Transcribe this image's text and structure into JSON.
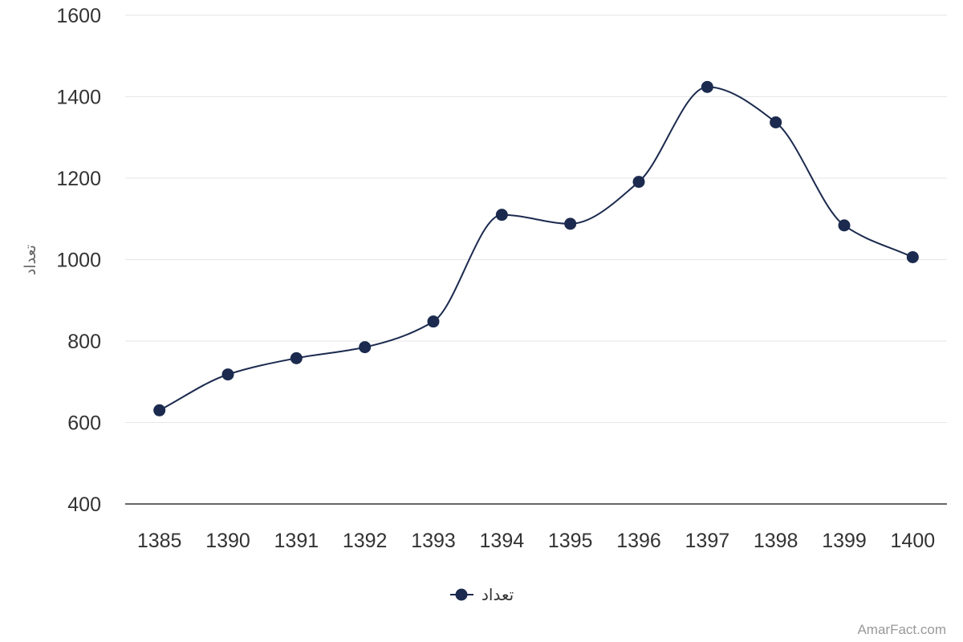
{
  "chart_data": {
    "type": "line",
    "smooth": true,
    "categories": [
      "1385",
      "1390",
      "1391",
      "1392",
      "1393",
      "1394",
      "1395",
      "1396",
      "1397",
      "1398",
      "1399",
      "1400"
    ],
    "series": [
      {
        "name": "تعداد",
        "color": "#1b2a4e",
        "values": [
          630,
          718,
          758,
          785,
          848,
          1110,
          1088,
          1191,
          1424,
          1337,
          1084,
          1006
        ]
      }
    ],
    "ylabel": "تعداد",
    "xlabel": "",
    "ylim": [
      400,
      1600
    ],
    "yticks": [
      400,
      600,
      800,
      1000,
      1200,
      1400,
      1600
    ],
    "grid": true,
    "legend": "bottom-center"
  },
  "credit": "AmarFact.com",
  "colors": {
    "series": "#1b2a4e",
    "grid": "#e6e6e6",
    "axis": "#333333",
    "tick_text": "#333333",
    "credit": "#999999"
  }
}
